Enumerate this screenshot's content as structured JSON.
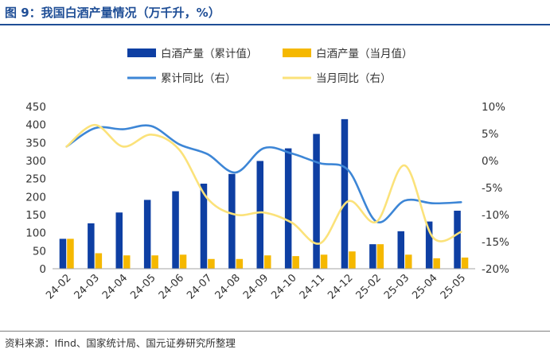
{
  "title": "图 9：我国白酒产量情况（万千升，%）",
  "source": "资料来源：Ifind、国家统计局、国元证券研究所整理",
  "chart_data": {
    "type": "bar+line",
    "categories": [
      "24-02",
      "24-03",
      "24-04",
      "24-05",
      "24-06",
      "24-07",
      "24-08",
      "24-09",
      "24-10",
      "24-11",
      "24-12",
      "25-02",
      "25-03",
      "25-04",
      "25-05"
    ],
    "series": [
      {
        "name": "白酒产量（累计值）",
        "type": "bar",
        "axis": "left",
        "color": "#0e3fa3",
        "values": [
          83,
          126,
          156,
          191,
          215,
          236,
          263,
          299,
          334,
          374,
          415,
          68,
          104,
          131,
          161
        ]
      },
      {
        "name": "白酒产量（当月值）",
        "type": "bar",
        "axis": "left",
        "color": "#f5b800",
        "values": [
          83,
          43,
          37,
          37,
          39,
          27,
          27,
          37,
          35,
          39,
          48,
          68,
          39,
          29,
          31
        ]
      },
      {
        "name": "累计同比（右）",
        "type": "line",
        "axis": "right",
        "color": "#3d86d6",
        "values": [
          2.6,
          6.0,
          5.8,
          6.4,
          3.0,
          1.2,
          -2.2,
          2.3,
          1.3,
          -0.5,
          -1.8,
          -11.3,
          -7.4,
          -7.9,
          -7.7
        ]
      },
      {
        "name": "当月同比（右）",
        "type": "line",
        "axis": "right",
        "color": "#fbe27a",
        "values": [
          2.6,
          6.6,
          2.6,
          4.8,
          2.0,
          -7.0,
          -10.0,
          -9.6,
          -11.5,
          -15.3,
          -7.5,
          -11.3,
          -0.9,
          -14.2,
          -13.2
        ]
      }
    ],
    "yleft": {
      "lim": [
        0,
        450
      ],
      "ticks": [
        0,
        50,
        100,
        150,
        200,
        250,
        300,
        350,
        400,
        450
      ]
    },
    "yright": {
      "lim": [
        -20,
        10
      ],
      "ticks": [
        -20,
        -15,
        -10,
        -5,
        0,
        5,
        10
      ],
      "tick_labels": [
        "-20%",
        "-15%",
        "-10%",
        "-5%",
        "0%",
        "5%",
        "10%"
      ]
    },
    "legend": "top",
    "grid": false
  }
}
